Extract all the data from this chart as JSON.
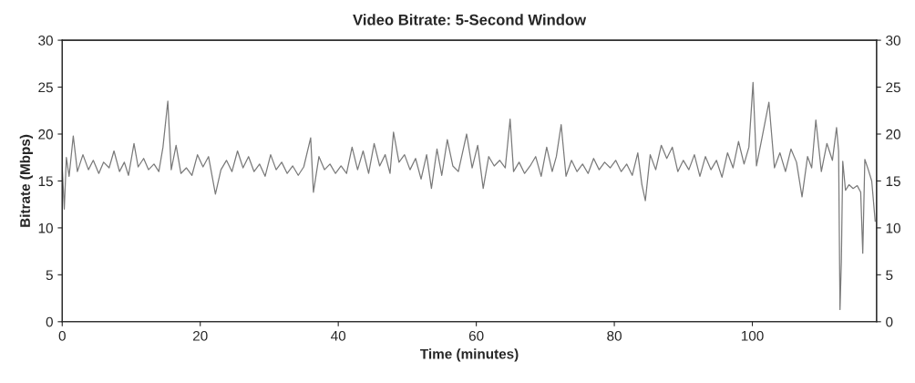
{
  "chart_data": {
    "type": "line",
    "title": "Video Bitrate: 5-Second Window",
    "xlabel": "Time (minutes)",
    "ylabel": "Bitrate (Mbps)",
    "series": [
      {
        "color": "#7a7a7a",
        "x": [
          0,
          0.3,
          0.6,
          1.0,
          1.6,
          2.2,
          3,
          3.8,
          4.5,
          5.3,
          6,
          6.8,
          7.5,
          8.3,
          9,
          9.6,
          10.4,
          11,
          11.8,
          12.5,
          13.3,
          14,
          14.6,
          15.3,
          15.8,
          16.5,
          17.2,
          18,
          18.8,
          19.6,
          20.4,
          21.2,
          22.2,
          23,
          23.8,
          24.6,
          25.4,
          26.2,
          27,
          27.8,
          28.6,
          29.4,
          30.2,
          31,
          31.8,
          32.6,
          33.4,
          34.2,
          35,
          36,
          36.4,
          37.2,
          38,
          38.8,
          39.6,
          40.4,
          41.2,
          42,
          42.8,
          43.6,
          44.4,
          45.2,
          46,
          46.8,
          47.5,
          48,
          48.8,
          49.6,
          50.4,
          51.2,
          52,
          52.8,
          53.5,
          54.3,
          55,
          55.8,
          56.6,
          57.4,
          58.6,
          59.4,
          60.2,
          61,
          61.8,
          62.6,
          63.4,
          64.2,
          64.9,
          65.4,
          66.2,
          67,
          67.8,
          68.6,
          69.4,
          70.2,
          71,
          71.6,
          72.3,
          73,
          73.8,
          74.6,
          75.4,
          76.2,
          77,
          77.8,
          78.6,
          79.4,
          80.2,
          81,
          81.8,
          82.6,
          83.4,
          84,
          84.5,
          85.2,
          86,
          86.8,
          87.6,
          88.4,
          89.2,
          90,
          90.8,
          91.6,
          92.4,
          93.2,
          94,
          94.8,
          95.6,
          96.4,
          97.2,
          98,
          98.8,
          99.5,
          100.1,
          100.6,
          101.4,
          102.4,
          103.2,
          104,
          104.8,
          105.6,
          106.4,
          107.2,
          108,
          108.6,
          109.2,
          110,
          110.8,
          111.6,
          112.2,
          112.5,
          112.7,
          112.9,
          113.1,
          113.5,
          114,
          114.6,
          115.2,
          115.7,
          116,
          116.3,
          116.8,
          117.3,
          117.8
        ],
        "values": [
          16.5,
          12,
          17.5,
          15.5,
          19.8,
          16,
          17.8,
          16.2,
          17.2,
          15.8,
          17,
          16.4,
          18.2,
          16,
          17,
          15.6,
          19,
          16.5,
          17.4,
          16.2,
          16.8,
          16,
          18.6,
          23.5,
          16.2,
          18.8,
          15.8,
          16.4,
          15.6,
          17.8,
          16.5,
          17.6,
          13.6,
          16.2,
          17.2,
          16,
          18.2,
          16.4,
          17.6,
          16,
          16.8,
          15.5,
          17.8,
          16.2,
          17,
          15.8,
          16.6,
          15.6,
          16.5,
          19.6,
          13.8,
          17.6,
          16.2,
          16.8,
          15.8,
          16.6,
          15.8,
          18.6,
          16.2,
          18.2,
          15.8,
          19,
          16.6,
          17.8,
          15.8,
          20.2,
          17,
          17.8,
          16.2,
          17.4,
          15.2,
          17.8,
          14.2,
          18.4,
          15.6,
          19.4,
          16.6,
          16,
          20,
          16.4,
          18.8,
          14.2,
          17.6,
          16.6,
          17.2,
          16.4,
          21.6,
          16,
          17,
          15.8,
          16.6,
          17.6,
          15.5,
          18.6,
          16,
          17.6,
          21,
          15.5,
          17.2,
          16,
          16.8,
          15.8,
          17.4,
          16.2,
          17,
          16.4,
          17.2,
          16,
          16.8,
          15.6,
          18,
          14.6,
          12.9,
          17.8,
          16.2,
          18.8,
          17.4,
          18.6,
          16,
          17.2,
          16.2,
          17.8,
          15.5,
          17.6,
          16.2,
          17.2,
          15.4,
          18,
          16.4,
          19.2,
          16.8,
          18.6,
          25.5,
          16.6,
          19.6,
          23.4,
          16.4,
          18,
          16,
          18.4,
          17,
          13.3,
          17.6,
          16.4,
          21.5,
          16,
          19,
          17.2,
          20.7,
          18.2,
          1.3,
          6.5,
          17.1,
          14,
          14.6,
          14.2,
          14.5,
          13.8,
          7.3,
          17.3,
          16.2,
          15,
          10.7
        ]
      }
    ],
    "xlim": [
      0,
      118
    ],
    "xticks": [
      0,
      20,
      40,
      60,
      80,
      100
    ],
    "ylim": [
      0,
      30
    ],
    "yticks": [
      0,
      5,
      10,
      15,
      20,
      25,
      30
    ],
    "y2lim": [
      0,
      30
    ],
    "y2ticks": [
      0,
      5,
      10,
      15,
      20,
      25,
      30
    ]
  }
}
